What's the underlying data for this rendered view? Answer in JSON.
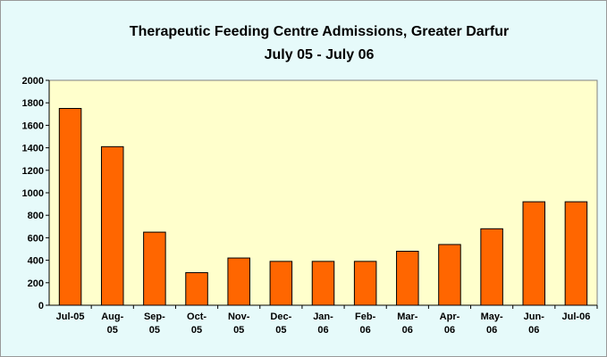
{
  "chart_data": {
    "type": "bar",
    "title": "Therapeutic Feeding Centre Admissions, Greater Darfur",
    "subtitle": "July 05 - July 06",
    "categories": [
      "Jul-05",
      "Aug-\n05",
      "Sep-\n05",
      "Oct-\n05",
      "Nov-\n05",
      "Dec-\n05",
      "Jan-\n06",
      "Feb-\n06",
      "Mar-\n06",
      "Apr-\n06",
      "May-\n06",
      "Jun-\n06",
      "Jul-06"
    ],
    "values": [
      1750,
      1410,
      650,
      290,
      420,
      390,
      390,
      390,
      480,
      540,
      680,
      920,
      920
    ],
    "color": "#ff6600",
    "ylim": [
      0,
      2000
    ],
    "yticks": [
      0,
      200,
      400,
      600,
      800,
      1000,
      1200,
      1400,
      1600,
      1800,
      2000
    ],
    "grid": false
  }
}
